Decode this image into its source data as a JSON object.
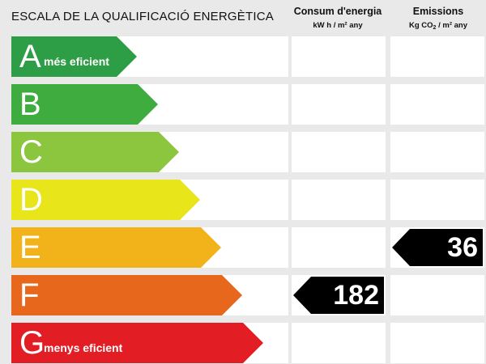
{
  "header": {
    "title": "ESCALA DE LA QUALIFICACIÓ ENERGÈTICA",
    "consum_title": "Consum d'energia",
    "consum_unit_pre": "kW h / m² any",
    "emis_title": "Emissions",
    "emis_unit_pre": "Kg CO",
    "emis_unit_sub": "2",
    "emis_unit_post": " / m² any"
  },
  "classes": [
    {
      "letter": "A",
      "label": "més eficient",
      "color": "#2e9e46"
    },
    {
      "letter": "B",
      "label": "",
      "color": "#3fac3f"
    },
    {
      "letter": "C",
      "label": "",
      "color": "#8cc63e"
    },
    {
      "letter": "D",
      "label": "",
      "color": "#e8e51b"
    },
    {
      "letter": "E",
      "label": "",
      "color": "#f2b21a"
    },
    {
      "letter": "F",
      "label": "",
      "color": "#e7671d"
    },
    {
      "letter": "G",
      "label": "menys eficient",
      "color": "#e21d24"
    }
  ],
  "ratings": {
    "consum": {
      "class": "F",
      "value": "182"
    },
    "emissions": {
      "class": "E",
      "value": "36"
    }
  }
}
